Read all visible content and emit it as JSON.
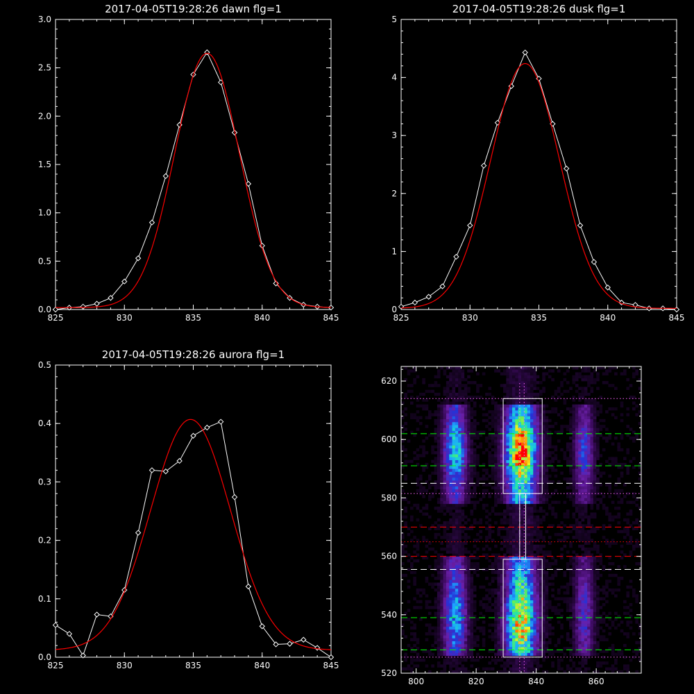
{
  "chart_data": [
    {
      "type": "line",
      "title": "2017-04-05T19:28:26 dawn flg=1",
      "xlim": [
        825,
        845
      ],
      "ylim": [
        0,
        3.0
      ],
      "xticks": [
        825,
        830,
        835,
        840,
        845
      ],
      "yticks": [
        0.0,
        0.5,
        1.0,
        1.5,
        2.0,
        2.5,
        3.0
      ],
      "ytick_labels": [
        "0.0",
        "0.5",
        "1.0",
        "1.5",
        "2.0",
        "2.5",
        "3.0"
      ],
      "series": [
        {
          "color": "#ffffff",
          "marker": "diamond",
          "x": [
            825,
            826,
            827,
            828,
            829,
            830,
            831,
            832,
            833,
            834,
            835,
            836,
            837,
            838,
            839,
            840,
            841,
            842,
            843,
            844,
            845
          ],
          "y": [
            0.0,
            0.02,
            0.03,
            0.06,
            0.12,
            0.29,
            0.53,
            0.9,
            1.38,
            1.91,
            2.43,
            2.66,
            2.35,
            1.83,
            1.3,
            0.66,
            0.27,
            0.12,
            0.05,
            0.03,
            0.02
          ]
        },
        {
          "color": "#ff0000",
          "marker": "none",
          "fit": {
            "amplitude": 2.63,
            "center": 836.0,
            "sigma": 2.35,
            "offset": 0.02
          }
        }
      ]
    },
    {
      "type": "line",
      "title": "2017-04-05T19:28:26 dusk flg=1",
      "xlim": [
        825,
        845
      ],
      "ylim": [
        0,
        5
      ],
      "xticks": [
        825,
        830,
        835,
        840,
        845
      ],
      "yticks": [
        0,
        1,
        2,
        3,
        4,
        5
      ],
      "ytick_labels": [
        "0",
        "1",
        "2",
        "3",
        "4",
        "5"
      ],
      "series": [
        {
          "color": "#ffffff",
          "marker": "diamond",
          "x": [
            825,
            826,
            827,
            828,
            829,
            830,
            831,
            832,
            833,
            834,
            835,
            836,
            837,
            838,
            839,
            840,
            841,
            842,
            843,
            844,
            845
          ],
          "y": [
            0.05,
            0.12,
            0.22,
            0.4,
            0.91,
            1.45,
            2.48,
            3.22,
            3.85,
            4.43,
            3.98,
            3.2,
            2.43,
            1.45,
            0.82,
            0.38,
            0.12,
            0.08,
            0.02,
            0.02,
            0.0
          ]
        },
        {
          "color": "#ff0000",
          "marker": "none",
          "fit": {
            "amplitude": 4.22,
            "center": 834.0,
            "sigma": 2.5,
            "offset": 0.02
          }
        }
      ]
    },
    {
      "type": "line",
      "title": "2017-04-05T19:28:26 aurora flg=1",
      "xlim": [
        825,
        845
      ],
      "ylim": [
        0,
        0.5
      ],
      "xticks": [
        825,
        830,
        835,
        840,
        845
      ],
      "yticks": [
        0.0,
        0.1,
        0.2,
        0.3,
        0.4,
        0.5
      ],
      "ytick_labels": [
        "0.0",
        "0.1",
        "0.2",
        "0.3",
        "0.4",
        "0.5"
      ],
      "series": [
        {
          "color": "#ffffff",
          "marker": "diamond",
          "x": [
            825,
            826,
            827,
            828,
            829,
            830,
            831,
            832,
            833,
            834,
            835,
            836,
            837,
            838,
            839,
            840,
            841,
            842,
            843,
            844,
            845
          ],
          "y": [
            0.055,
            0.04,
            0.003,
            0.073,
            0.07,
            0.115,
            0.213,
            0.32,
            0.318,
            0.336,
            0.379,
            0.393,
            0.403,
            0.274,
            0.121,
            0.053,
            0.022,
            0.023,
            0.03,
            0.016,
            0.0
          ]
        },
        {
          "color": "#ff0000",
          "marker": "none",
          "fit": {
            "amplitude": 0.395,
            "center": 834.8,
            "sigma": 2.9,
            "offset": 0.012
          }
        }
      ]
    },
    {
      "type": "heatmap",
      "title": "",
      "xlim": [
        795,
        875
      ],
      "ylim": [
        520,
        625
      ],
      "xticks": [
        800,
        820,
        840,
        860
      ],
      "yticks": [
        520,
        540,
        560,
        580,
        600,
        620
      ],
      "colormap": [
        "#000000",
        "#3a0a5c",
        "#6a1fa8",
        "#2333d8",
        "#1ea6ff",
        "#19e0c0",
        "#5cf05a",
        "#f2f020",
        "#ff7f00",
        "#ff0000"
      ],
      "emission_columns": [
        {
          "x_center": 813,
          "width": 6,
          "peak": 0.55,
          "upper_center_y": 596,
          "lower_center_y": 540
        },
        {
          "x_center": 835,
          "width": 8,
          "peak": 1.0,
          "upper_center_y": 596,
          "lower_center_y": 538
        },
        {
          "x_center": 856,
          "width": 5,
          "peak": 0.32,
          "upper_center_y": 596,
          "lower_center_y": 540
        }
      ],
      "boxes": [
        {
          "x0": 829,
          "x1": 842,
          "y0": 581.5,
          "y1": 614,
          "color": "#ffffff"
        },
        {
          "x0": 829,
          "x1": 842,
          "y0": 525.5,
          "y1": 559,
          "color": "#ffffff"
        }
      ],
      "connector": {
        "x0": 834.5,
        "x1": 836.5,
        "y0": 559,
        "y1": 581.5,
        "color": "#ffffff"
      },
      "hlines": [
        {
          "y": 614,
          "color": "#ff66ff",
          "style": "dotted"
        },
        {
          "y": 602,
          "color": "#00ff00",
          "style": "dashed"
        },
        {
          "y": 591,
          "color": "#00ff00",
          "style": "dashed"
        },
        {
          "y": 585,
          "color": "#ffffff",
          "style": "dashed"
        },
        {
          "y": 581.5,
          "color": "#ff66ff",
          "style": "dotted"
        },
        {
          "y": 570,
          "color": "#ff0000",
          "style": "dashed"
        },
        {
          "y": 565,
          "color": "#ff0000",
          "style": "dotted"
        },
        {
          "y": 560,
          "color": "#ff0000",
          "style": "dashed"
        },
        {
          "y": 555.5,
          "color": "#ffffff",
          "style": "dashed"
        },
        {
          "y": 539,
          "color": "#00ff00",
          "style": "dashed"
        },
        {
          "y": 528,
          "color": "#00ff00",
          "style": "dashed"
        },
        {
          "y": 525.5,
          "color": "#ff66ff",
          "style": "dotted"
        }
      ],
      "vlines": [
        {
          "x": 834.5,
          "color": "#ff66ff",
          "style": "dotted"
        },
        {
          "x": 836,
          "color": "#ff66ff",
          "style": "dotted"
        }
      ]
    }
  ]
}
